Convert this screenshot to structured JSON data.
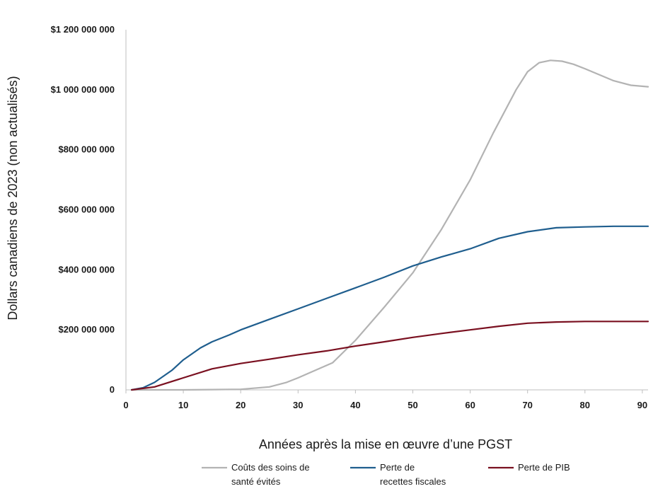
{
  "chart_data": {
    "type": "line",
    "xlabel": "Années après la mise en œuvre d’une PGST",
    "ylabel": "Dollars canadiens de 2023 (non actualisés)",
    "xlim": [
      0,
      91
    ],
    "ylim": [
      0,
      1200000000
    ],
    "x_ticks": [
      0,
      10,
      20,
      30,
      40,
      50,
      60,
      70,
      80,
      90
    ],
    "x_tick_labels": [
      "0",
      "10",
      "20",
      "30",
      "40",
      "50",
      "60",
      "70",
      "80",
      "90"
    ],
    "y_ticks": [
      0,
      200000000,
      400000000,
      600000000,
      800000000,
      1000000000,
      1200000000
    ],
    "y_tick_labels": [
      "0",
      "$200 000 000",
      "$400 000 000",
      "$600 000 000",
      "$800 000 000",
      "$1 000 000 000",
      "$1 200 000 000"
    ],
    "grid": false,
    "legend_position": "bottom",
    "series": [
      {
        "name": "Coûts des soins de santé évités",
        "legend_lines": [
          "Coûts des soins de",
          "santé évités"
        ],
        "color": "#b3b3b3",
        "x": [
          1,
          5,
          10,
          15,
          20,
          25,
          28,
          30,
          33,
          36,
          40,
          45,
          50,
          55,
          60,
          64,
          68,
          70,
          72,
          74,
          76,
          78,
          80,
          85,
          88,
          91
        ],
        "y": [
          0,
          0,
          0,
          1000000,
          2000000,
          10000000,
          25000000,
          40000000,
          65000000,
          90000000,
          165000000,
          275000000,
          390000000,
          535000000,
          700000000,
          855000000,
          1000000000,
          1060000000,
          1090000000,
          1098000000,
          1095000000,
          1085000000,
          1070000000,
          1030000000,
          1015000000,
          1010000000
        ]
      },
      {
        "name": "Perte de recettes fiscales",
        "legend_lines": [
          "Perte de",
          "recettes fiscales"
        ],
        "color": "#1f5e8e",
        "x": [
          1,
          3,
          5,
          8,
          10,
          13,
          15,
          18,
          20,
          25,
          30,
          35,
          40,
          45,
          50,
          55,
          60,
          65,
          70,
          75,
          80,
          85,
          91
        ],
        "y": [
          0,
          7000000,
          25000000,
          65000000,
          100000000,
          140000000,
          160000000,
          183000000,
          200000000,
          235000000,
          270000000,
          305000000,
          340000000,
          375000000,
          413000000,
          443000000,
          470000000,
          505000000,
          527000000,
          540000000,
          543000000,
          545000000,
          545000000
        ]
      },
      {
        "name": "Perte de PIB",
        "legend_lines": [
          "Perte de PIB"
        ],
        "color": "#7a1020",
        "x": [
          1,
          5,
          10,
          15,
          20,
          25,
          30,
          35,
          40,
          45,
          50,
          55,
          60,
          65,
          70,
          75,
          80,
          85,
          91
        ],
        "y": [
          0,
          10000000,
          40000000,
          70000000,
          88000000,
          102000000,
          117000000,
          130000000,
          146000000,
          160000000,
          175000000,
          188000000,
          200000000,
          212000000,
          222000000,
          226000000,
          228000000,
          228000000,
          228000000
        ]
      }
    ]
  }
}
